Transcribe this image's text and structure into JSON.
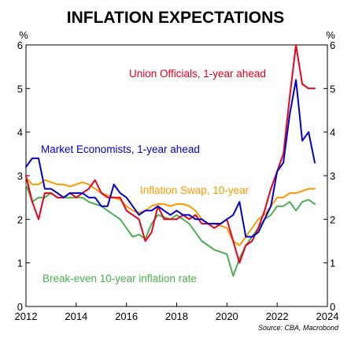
{
  "chart_data": {
    "type": "line",
    "title": "INFLATION EXPECTATIONS",
    "ylabel_left": "%",
    "ylabel_right": "%",
    "xlim": [
      2012,
      2024
    ],
    "ylim": [
      0,
      6
    ],
    "x_ticks": [
      "2012",
      "2014",
      "2016",
      "2018",
      "2020",
      "2022",
      "2024"
    ],
    "y_ticks": [
      "0",
      "1",
      "2",
      "3",
      "4",
      "5",
      "6"
    ],
    "grid": false,
    "source": "Source: CBA, Macrobond",
    "series": [
      {
        "name": "Union Officials, 1-year ahead",
        "color": "#e8001c",
        "x": [
          2012.0,
          2012.25,
          2012.5,
          2012.75,
          2013.0,
          2013.25,
          2013.5,
          2013.75,
          2014.0,
          2014.25,
          2014.5,
          2014.75,
          2015.0,
          2015.25,
          2015.5,
          2015.75,
          2016.0,
          2016.25,
          2016.5,
          2016.75,
          2017.0,
          2017.25,
          2017.5,
          2017.75,
          2018.0,
          2018.25,
          2018.5,
          2018.75,
          2019.0,
          2019.25,
          2019.5,
          2019.75,
          2020.0,
          2020.25,
          2020.5,
          2020.75,
          2021.0,
          2021.25,
          2021.5,
          2021.75,
          2022.0,
          2022.25,
          2022.5,
          2022.75,
          2023.0,
          2023.25,
          2023.5
        ],
        "values": [
          3.0,
          2.4,
          2.0,
          2.6,
          2.6,
          2.5,
          2.5,
          2.6,
          2.5,
          2.6,
          2.7,
          2.9,
          2.6,
          2.5,
          2.5,
          2.5,
          2.2,
          2.1,
          2.0,
          1.5,
          1.7,
          2.3,
          2.0,
          2.0,
          2.0,
          2.1,
          2.0,
          2.1,
          1.9,
          1.9,
          1.8,
          1.9,
          2.0,
          1.5,
          1.0,
          1.4,
          1.5,
          1.8,
          2.2,
          2.7,
          3.1,
          3.5,
          4.8,
          6.0,
          5.1,
          5.0,
          5.0
        ]
      },
      {
        "name": "Market Economists, 1-year ahead",
        "color": "#0000cc",
        "x": [
          2012.0,
          2012.25,
          2012.5,
          2012.75,
          2013.0,
          2013.25,
          2013.5,
          2013.75,
          2014.0,
          2014.25,
          2014.5,
          2014.75,
          2015.0,
          2015.25,
          2015.5,
          2015.75,
          2016.0,
          2016.25,
          2016.5,
          2016.75,
          2017.0,
          2017.25,
          2017.5,
          2017.75,
          2018.0,
          2018.25,
          2018.5,
          2018.75,
          2019.0,
          2019.25,
          2019.5,
          2019.75,
          2020.0,
          2020.25,
          2020.5,
          2020.75,
          2021.0,
          2021.25,
          2021.5,
          2021.75,
          2022.0,
          2022.25,
          2022.5,
          2022.75,
          2023.0,
          2023.25,
          2023.5
        ],
        "values": [
          3.2,
          3.4,
          3.4,
          2.7,
          2.7,
          2.6,
          2.5,
          2.6,
          2.6,
          2.6,
          2.5,
          2.5,
          2.3,
          2.3,
          2.8,
          2.6,
          2.5,
          2.3,
          2.1,
          2.2,
          2.2,
          2.3,
          2.2,
          2.1,
          2.2,
          2.1,
          2.1,
          2.0,
          2.0,
          1.9,
          1.9,
          1.9,
          2.0,
          2.1,
          2.4,
          1.6,
          1.6,
          1.7,
          2.0,
          2.3,
          3.1,
          3.3,
          4.4,
          5.2,
          3.8,
          4.0,
          3.3
        ]
      },
      {
        "name": "Inflation Swap, 10-year",
        "color": "#ff9900",
        "x": [
          2012.0,
          2012.25,
          2012.5,
          2012.75,
          2013.0,
          2013.25,
          2013.5,
          2013.75,
          2014.0,
          2014.25,
          2014.5,
          2014.75,
          2015.0,
          2015.25,
          2015.5,
          2015.75,
          2016.0,
          2016.25,
          2016.5,
          2016.75,
          2017.0,
          2017.25,
          2017.5,
          2017.75,
          2018.0,
          2018.25,
          2018.5,
          2018.75,
          2019.0,
          2019.25,
          2019.5,
          2019.75,
          2020.0,
          2020.25,
          2020.5,
          2020.75,
          2021.0,
          2021.25,
          2021.5,
          2021.75,
          2022.0,
          2022.25,
          2022.5,
          2022.75,
          2023.0,
          2023.25,
          2023.5
        ],
        "values": [
          2.95,
          2.8,
          2.8,
          2.9,
          2.85,
          2.8,
          2.8,
          2.75,
          2.8,
          2.85,
          2.8,
          2.7,
          2.6,
          2.55,
          2.5,
          2.45,
          2.3,
          2.2,
          2.15,
          2.2,
          2.3,
          2.35,
          2.35,
          2.3,
          2.35,
          2.35,
          2.3,
          2.2,
          2.0,
          1.9,
          1.9,
          1.85,
          1.8,
          1.5,
          1.4,
          1.6,
          1.8,
          2.0,
          2.1,
          2.3,
          2.5,
          2.5,
          2.6,
          2.6,
          2.65,
          2.7,
          2.7
        ]
      },
      {
        "name": "Break-even 10-year inflation rate",
        "color": "#4caf50",
        "x": [
          2012.0,
          2012.25,
          2012.5,
          2012.75,
          2013.0,
          2013.25,
          2013.5,
          2013.75,
          2014.0,
          2014.25,
          2014.5,
          2014.75,
          2015.0,
          2015.25,
          2015.5,
          2015.75,
          2016.0,
          2016.25,
          2016.5,
          2016.75,
          2017.0,
          2017.25,
          2017.5,
          2017.75,
          2018.0,
          2018.25,
          2018.5,
          2018.75,
          2019.0,
          2019.25,
          2019.5,
          2019.75,
          2020.0,
          2020.25,
          2020.5,
          2020.75,
          2021.0,
          2021.25,
          2021.5,
          2021.75,
          2022.0,
          2022.25,
          2022.5,
          2022.75,
          2023.0,
          2023.25,
          2023.5
        ],
        "values": [
          2.8,
          2.4,
          2.5,
          2.5,
          2.6,
          2.5,
          2.5,
          2.5,
          2.5,
          2.5,
          2.4,
          2.35,
          2.3,
          2.2,
          2.1,
          2.0,
          1.8,
          1.6,
          1.65,
          1.55,
          1.9,
          2.1,
          2.05,
          2.0,
          2.1,
          2.0,
          1.9,
          1.7,
          1.5,
          1.4,
          1.3,
          1.25,
          1.2,
          0.7,
          1.1,
          1.4,
          1.6,
          1.8,
          2.0,
          2.1,
          2.3,
          2.3,
          2.4,
          2.2,
          2.4,
          2.45,
          2.35
        ]
      }
    ]
  }
}
